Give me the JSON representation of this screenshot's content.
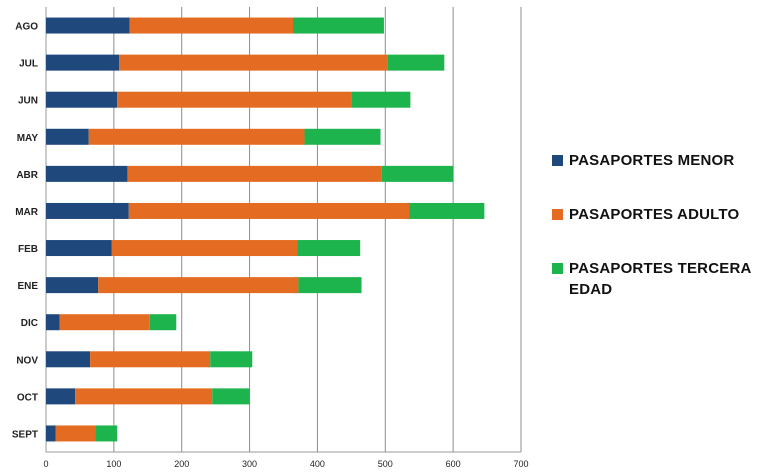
{
  "chart_data": {
    "type": "bar",
    "orientation": "horizontal",
    "stacked": true,
    "categories": [
      "AGO",
      "JUL",
      "JUN",
      "MAY",
      "ABR",
      "MAR",
      "FEB",
      "ENE",
      "DIC",
      "NOV",
      "OCT",
      "SEPT"
    ],
    "series": [
      {
        "name": "PASAPORTES MENOR",
        "color": "#1f497d",
        "values": [
          123,
          108,
          105,
          63,
          120,
          122,
          97,
          77,
          20,
          65,
          43,
          14
        ]
      },
      {
        "name": "PASAPORTES ADULTO",
        "color": "#e46c22",
        "values": [
          241,
          395,
          345,
          318,
          375,
          413,
          273,
          295,
          133,
          177,
          202,
          59
        ]
      },
      {
        "name": "PASAPORTES TERCERA EDAD",
        "color": "#1db34d",
        "values": [
          134,
          84,
          87,
          112,
          105,
          111,
          93,
          93,
          39,
          62,
          55,
          32
        ]
      }
    ],
    "xlim": [
      0,
      700
    ],
    "xticks": [
      "0",
      "100",
      "200",
      "300",
      "400",
      "500",
      "600",
      "700"
    ],
    "grid": true,
    "legend_position": "right",
    "title": "",
    "xlabel": "",
    "ylabel": ""
  }
}
